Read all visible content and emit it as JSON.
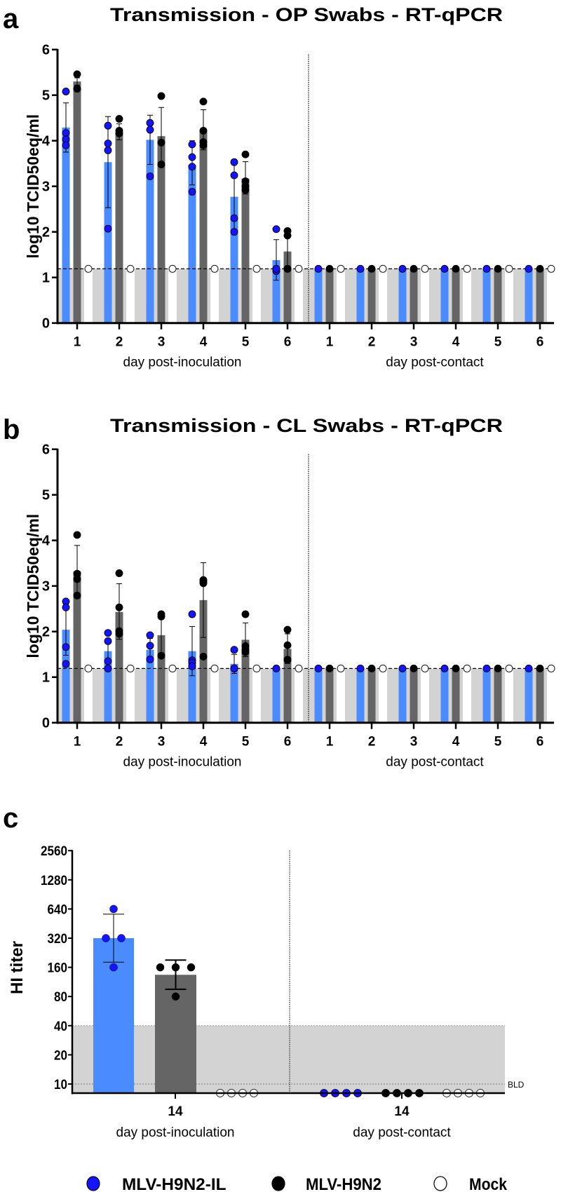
{
  "colors": {
    "il_bar": "#4a8cff",
    "h9n2_bar": "#656565",
    "below_limit_band": "#d3d3d3",
    "il_point": "#1414ff",
    "h9n2_point": "#000000",
    "mock_point": "#ffffff"
  },
  "legend": [
    {
      "label": "MLV-H9N2-IL",
      "color": "#1414ff"
    },
    {
      "label": "MLV-H9N2",
      "color": "#000000"
    },
    {
      "label": "Mock",
      "color": "#ffffff"
    }
  ],
  "chart_data": [
    {
      "panel_label": "a",
      "type": "bar",
      "title": "Transmission - OP Swabs - RT-qPCR",
      "ylabel": "log10 TCID50eq/ml",
      "ylim": [
        0,
        6
      ],
      "yticks": [
        "0",
        "1",
        "2",
        "3",
        "4",
        "5",
        "6"
      ],
      "limit_of_detection": 1.19,
      "xgroups": [
        {
          "label": "day post-inoculation",
          "days": [
            "1",
            "2",
            "3",
            "4",
            "5",
            "6"
          ]
        },
        {
          "label": "day post-contact",
          "days": [
            "1",
            "2",
            "3",
            "4",
            "5",
            "6"
          ]
        }
      ],
      "series": [
        {
          "name": "MLV-H9N2-IL",
          "values": [
            4.29,
            3.53,
            4.02,
            3.47,
            2.77,
            1.38,
            1.19,
            1.19,
            1.19,
            1.19,
            1.19,
            1.19
          ],
          "err_high": [
            4.83,
            4.53,
            4.56,
            4.0,
            3.53,
            1.83,
            null,
            null,
            null,
            null,
            null,
            null
          ],
          "err_low": [
            3.75,
            2.53,
            3.48,
            3.03,
            2.01,
            0.94,
            null,
            null,
            null,
            null,
            null,
            null
          ],
          "points": [
            [
              5.08,
              4.17,
              4.03,
              3.9
            ],
            [
              4.33,
              3.94,
              3.79,
              2.07
            ],
            [
              4.39,
              4.24,
              3.22
            ],
            [
              3.92,
              3.64,
              3.43,
              2.88
            ],
            [
              3.53,
              3.24,
              2.3,
              2.0
            ],
            [
              2.06,
              1.19,
              1.14,
              1.19
            ],
            [
              1.19
            ],
            [
              1.19
            ],
            [
              1.19
            ],
            [
              1.19
            ],
            [
              1.19
            ],
            [
              1.19
            ]
          ]
        },
        {
          "name": "MLV-H9N2",
          "values": [
            5.3,
            4.19,
            4.1,
            4.21,
            3.17,
            1.57,
            1.19,
            1.19,
            1.19,
            1.19,
            1.19,
            1.19
          ],
          "err_high": [
            5.38,
            4.37,
            4.73,
            4.68,
            3.54,
            1.94,
            null,
            null,
            null,
            null,
            null,
            null
          ],
          "err_low": [
            5.22,
            4.02,
            3.47,
            3.8,
            2.83,
            1.2,
            null,
            null,
            null,
            null,
            null,
            null
          ],
          "points": [
            [
              5.46,
              5.14
            ],
            [
              4.48,
              4.22,
              4.16
            ],
            [
              4.98,
              3.96,
              3.48
            ],
            [
              4.86,
              4.22,
              3.97,
              3.9
            ],
            [
              3.7,
              3.11,
              3.0,
              2.92
            ],
            [
              2.02,
              1.92,
              1.19,
              1.19
            ],
            [
              1.19
            ],
            [
              1.19
            ],
            [
              1.19
            ],
            [
              1.19
            ],
            [
              1.19
            ],
            [
              1.19
            ]
          ]
        },
        {
          "name": "Mock",
          "values": [
            1.19,
            1.19,
            1.19,
            1.19,
            1.19,
            1.19,
            1.19,
            1.19,
            1.19,
            1.19,
            1.19,
            1.19
          ],
          "points": [
            [
              1.19
            ],
            [
              1.19
            ],
            [
              1.19
            ],
            [
              1.19
            ],
            [
              1.19
            ],
            [
              1.19
            ],
            [
              1.19
            ],
            [
              1.19
            ],
            [
              1.19
            ],
            [
              1.19
            ],
            [
              1.19
            ],
            [
              1.19
            ]
          ]
        }
      ]
    },
    {
      "panel_label": "b",
      "type": "bar",
      "title": "Transmission - CL Swabs - RT-qPCR",
      "ylabel": "log10 TCID50eq/ml",
      "ylim": [
        0,
        6
      ],
      "yticks": [
        "0",
        "1",
        "2",
        "3",
        "4",
        "5",
        "6"
      ],
      "limit_of_detection": 1.19,
      "xgroups": [
        {
          "label": "day post-inoculation",
          "days": [
            "1",
            "2",
            "3",
            "4",
            "5",
            "6"
          ]
        },
        {
          "label": "day post-contact",
          "days": [
            "1",
            "2",
            "3",
            "4",
            "5",
            "6"
          ]
        }
      ],
      "series": [
        {
          "name": "MLV-H9N2-IL",
          "values": [
            2.04,
            1.57,
            1.6,
            1.57,
            1.29,
            1.19,
            1.19,
            1.19,
            1.19,
            1.19,
            1.19,
            1.19
          ],
          "err_high": [
            2.6,
            1.84,
            1.85,
            2.11,
            1.5,
            null,
            null,
            null,
            null,
            null,
            null,
            null
          ],
          "err_low": [
            1.48,
            1.3,
            1.38,
            1.03,
            1.08,
            null,
            null,
            null,
            null,
            null,
            null,
            null
          ],
          "points": [
            [
              2.66,
              2.53,
              1.66,
              1.29
            ],
            [
              1.97,
              1.79,
              1.35,
              1.19
            ],
            [
              1.92,
              1.69,
              1.39
            ],
            [
              2.38,
              1.37,
              1.32,
              1.24
            ],
            [
              1.6,
              1.19,
              1.19,
              1.19
            ],
            [
              1.19
            ],
            [
              1.19
            ],
            [
              1.19
            ],
            [
              1.19
            ],
            [
              1.19
            ],
            [
              1.19
            ],
            [
              1.19
            ]
          ]
        },
        {
          "name": "MLV-H9N2",
          "values": [
            3.32,
            2.43,
            1.92,
            2.69,
            1.82,
            1.62,
            1.19,
            1.19,
            1.19,
            1.19,
            1.19,
            1.19
          ],
          "err_high": [
            3.89,
            3.05,
            2.35,
            3.51,
            2.19,
            1.95,
            null,
            null,
            null,
            null,
            null,
            null
          ],
          "err_low": [
            2.75,
            1.83,
            1.48,
            1.87,
            1.45,
            1.3,
            null,
            null,
            null,
            null,
            null,
            null
          ],
          "points": [
            [
              4.12,
              3.27,
              3.15,
              2.79
            ],
            [
              3.28,
              2.53,
              2.01,
              1.95
            ],
            [
              2.38,
              2.33,
              1.47
            ],
            [
              3.13,
              3.1,
              3.06,
              1.45
            ],
            [
              2.38,
              1.68,
              1.6,
              1.55
            ],
            [
              2.04,
              1.7,
              1.38,
              1.38
            ],
            [
              1.19
            ],
            [
              1.19
            ],
            [
              1.19
            ],
            [
              1.19
            ],
            [
              1.19
            ],
            [
              1.19
            ]
          ]
        },
        {
          "name": "Mock",
          "values": [
            1.19,
            1.19,
            1.19,
            1.19,
            1.19,
            1.19,
            1.19,
            1.19,
            1.19,
            1.19,
            1.19,
            1.19
          ],
          "points": [
            [
              1.19
            ],
            [
              1.19
            ],
            [
              1.19
            ],
            [
              1.19
            ],
            [
              1.19
            ],
            [
              1.19
            ],
            [
              1.19
            ],
            [
              1.19
            ],
            [
              1.19
            ],
            [
              1.19
            ],
            [
              1.19
            ],
            [
              1.19
            ]
          ]
        }
      ]
    },
    {
      "panel_label": "c",
      "type": "bar",
      "title": "",
      "ylabel": "HI titer",
      "yscale": "log2",
      "ylim": [
        10,
        2560
      ],
      "yticks": [
        "10",
        "20",
        "40",
        "80",
        "160",
        "320",
        "640",
        "1280",
        "2560"
      ],
      "ytick_values": [
        10,
        20,
        40,
        80,
        160,
        320,
        640,
        1280,
        2560
      ],
      "shaded_threshold": 40,
      "detection_limit": 10,
      "detection_limit_label": "BLD",
      "xgroups": [
        {
          "label": "day post-inoculation",
          "days": [
            "14"
          ]
        },
        {
          "label": "day post-contact",
          "days": [
            "14"
          ]
        }
      ],
      "series": [
        {
          "name": "MLV-H9N2-IL",
          "values": [
            320,
            null
          ],
          "err_high": [
            566,
            null
          ],
          "err_low": [
            181,
            null
          ],
          "points": [
            [
              640,
              320,
              320,
              160
            ],
            [
              "BLD",
              "BLD",
              "BLD",
              "BLD"
            ]
          ]
        },
        {
          "name": "MLV-H9N2",
          "values": [
            134,
            null
          ],
          "err_high": [
            190,
            null
          ],
          "err_low": [
            95,
            null
          ],
          "points": [
            [
              160,
              160,
              160,
              80
            ],
            [
              "BLD",
              "BLD",
              "BLD",
              "BLD"
            ]
          ]
        },
        {
          "name": "Mock",
          "values": [
            null,
            null
          ],
          "points": [
            [
              "BLD",
              "BLD",
              "BLD",
              "BLD"
            ],
            [
              "BLD",
              "BLD",
              "BLD",
              "BLD"
            ]
          ]
        }
      ]
    }
  ]
}
